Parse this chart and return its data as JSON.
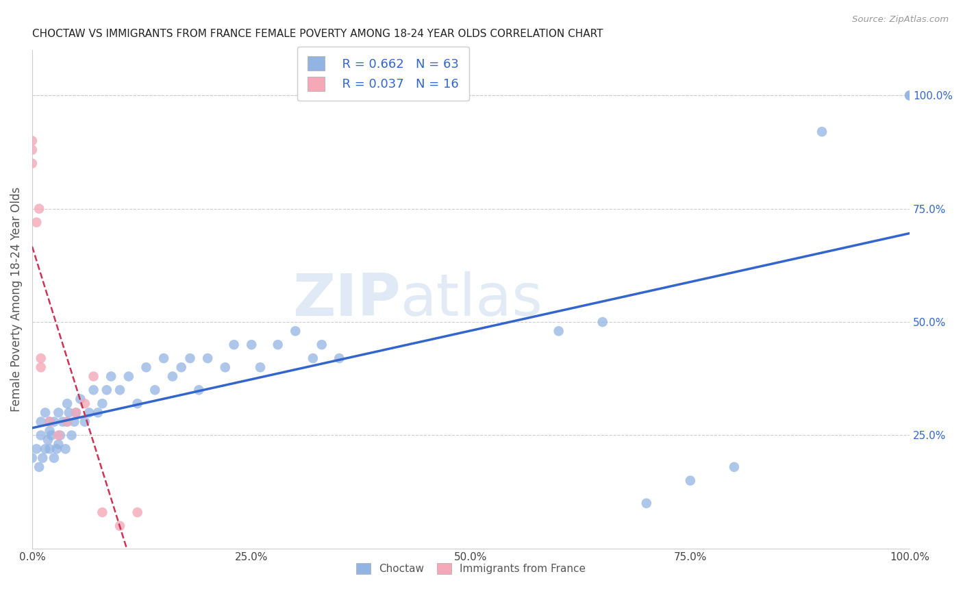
{
  "title": "CHOCTAW VS IMMIGRANTS FROM FRANCE FEMALE POVERTY AMONG 18-24 YEAR OLDS CORRELATION CHART",
  "source": "Source: ZipAtlas.com",
  "ylabel": "Female Poverty Among 18-24 Year Olds",
  "xlim": [
    0,
    1.0
  ],
  "ylim": [
    0.0,
    1.1
  ],
  "xticks": [
    0.0,
    0.25,
    0.5,
    0.75,
    1.0
  ],
  "xticklabels": [
    "0.0%",
    "25.0%",
    "50.0%",
    "75.0%",
    "100.0%"
  ],
  "yticks_right": [
    0.25,
    0.5,
    0.75,
    1.0
  ],
  "yticklabels_right": [
    "25.0%",
    "50.0%",
    "75.0%",
    "100.0%"
  ],
  "choctaw_color": "#92b4e3",
  "france_color": "#f4a8b8",
  "choctaw_line_color": "#3366cc",
  "france_line_color": "#cc3355",
  "R_choctaw": 0.662,
  "N_choctaw": 63,
  "R_france": 0.037,
  "N_france": 16,
  "watermark_zip": "ZIP",
  "watermark_atlas": "atlas",
  "choctaw_x": [
    0.0,
    0.005,
    0.008,
    0.01,
    0.01,
    0.012,
    0.015,
    0.015,
    0.018,
    0.02,
    0.02,
    0.02,
    0.022,
    0.025,
    0.025,
    0.028,
    0.03,
    0.03,
    0.032,
    0.035,
    0.038,
    0.04,
    0.04,
    0.042,
    0.045,
    0.048,
    0.05,
    0.055,
    0.06,
    0.065,
    0.07,
    0.075,
    0.08,
    0.085,
    0.09,
    0.1,
    0.11,
    0.12,
    0.13,
    0.14,
    0.15,
    0.16,
    0.17,
    0.18,
    0.19,
    0.2,
    0.22,
    0.23,
    0.25,
    0.26,
    0.28,
    0.3,
    0.32,
    0.33,
    0.35,
    0.6,
    0.65,
    0.7,
    0.75,
    0.8,
    0.9,
    1.0,
    1.0
  ],
  "choctaw_y": [
    0.2,
    0.22,
    0.18,
    0.25,
    0.28,
    0.2,
    0.22,
    0.3,
    0.24,
    0.22,
    0.26,
    0.28,
    0.25,
    0.2,
    0.28,
    0.22,
    0.23,
    0.3,
    0.25,
    0.28,
    0.22,
    0.28,
    0.32,
    0.3,
    0.25,
    0.28,
    0.3,
    0.33,
    0.28,
    0.3,
    0.35,
    0.3,
    0.32,
    0.35,
    0.38,
    0.35,
    0.38,
    0.32,
    0.4,
    0.35,
    0.42,
    0.38,
    0.4,
    0.42,
    0.35,
    0.42,
    0.4,
    0.45,
    0.45,
    0.4,
    0.45,
    0.48,
    0.42,
    0.45,
    0.42,
    0.48,
    0.5,
    0.1,
    0.15,
    0.18,
    0.92,
    1.0,
    1.0
  ],
  "france_x": [
    0.0,
    0.0,
    0.0,
    0.005,
    0.008,
    0.01,
    0.01,
    0.02,
    0.03,
    0.04,
    0.05,
    0.06,
    0.07,
    0.08,
    0.1,
    0.12
  ],
  "france_y": [
    0.85,
    0.88,
    0.9,
    0.72,
    0.75,
    0.4,
    0.42,
    0.28,
    0.25,
    0.28,
    0.3,
    0.32,
    0.38,
    0.08,
    0.05,
    0.08
  ]
}
